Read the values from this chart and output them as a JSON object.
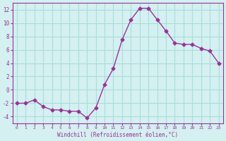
{
  "x": [
    0,
    1,
    2,
    3,
    4,
    5,
    6,
    7,
    8,
    9,
    10,
    11,
    12,
    13,
    14,
    15,
    16,
    17,
    18,
    19,
    20,
    21,
    22,
    23
  ],
  "y": [
    -2,
    -2,
    -1.5,
    -2.5,
    -3,
    -3,
    -3.2,
    -3.2,
    -4.2,
    -2.7,
    0.8,
    3.2,
    7.5,
    10.5,
    12.2,
    12.2,
    10.5,
    8.8,
    7,
    6.8,
    6.8,
    6.2,
    5.8,
    4
  ],
  "line_color": "#993399",
  "marker_color": "#993399",
  "bg_color": "#d4f0f0",
  "grid_color": "#aadddd",
  "xlabel": "Windchill (Refroidissement éolien,°C)",
  "ylim": [
    -5,
    13
  ],
  "xlim": [
    -0.5,
    23.5
  ],
  "yticks": [
    -4,
    -2,
    0,
    2,
    4,
    6,
    8,
    10,
    12
  ],
  "xticks": [
    0,
    1,
    2,
    3,
    4,
    5,
    6,
    7,
    8,
    9,
    10,
    11,
    12,
    13,
    14,
    15,
    16,
    17,
    18,
    19,
    20,
    21,
    22,
    23
  ],
  "tick_color": "#993399",
  "spine_color": "#993399",
  "label_color": "#993399",
  "font_family": "monospace"
}
